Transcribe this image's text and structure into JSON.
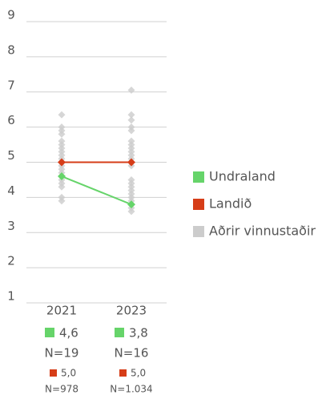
{
  "chart_data": {
    "type": "line",
    "categories": [
      "2021",
      "2023"
    ],
    "ylim": [
      1,
      9
    ],
    "yticks": [
      1,
      2,
      3,
      4,
      5,
      6,
      7,
      8,
      9
    ],
    "grid": true,
    "legend": "right",
    "series": [
      {
        "name": "Undraland",
        "color": "#66d46a",
        "values": [
          4.6,
          3.8
        ],
        "value_labels": [
          "4,6",
          "3,8"
        ],
        "counts": [
          "N=19",
          "N=16"
        ]
      },
      {
        "name": "Landið",
        "color": "#d63d18",
        "values": [
          5.0,
          5.0
        ],
        "value_labels": [
          "5,0",
          "5,0"
        ],
        "counts": [
          "N=978",
          "N=1.034"
        ]
      },
      {
        "name": "Aðrir vinnustaðir",
        "color": "#cccccc",
        "values": [
          [
            3.9,
            4.0,
            4.3,
            4.4,
            4.5,
            4.6,
            4.7,
            4.8,
            4.9,
            5.0,
            5.1,
            5.2,
            5.3,
            5.4,
            5.5,
            5.6,
            5.8,
            5.9,
            6.0,
            6.35
          ],
          [
            3.6,
            3.7,
            3.9,
            4.0,
            4.1,
            4.2,
            4.3,
            4.4,
            4.5,
            4.9,
            5.0,
            5.1,
            5.2,
            5.3,
            5.4,
            5.5,
            5.6,
            5.9,
            6.0,
            6.2,
            6.35,
            7.05
          ]
        ]
      }
    ]
  }
}
